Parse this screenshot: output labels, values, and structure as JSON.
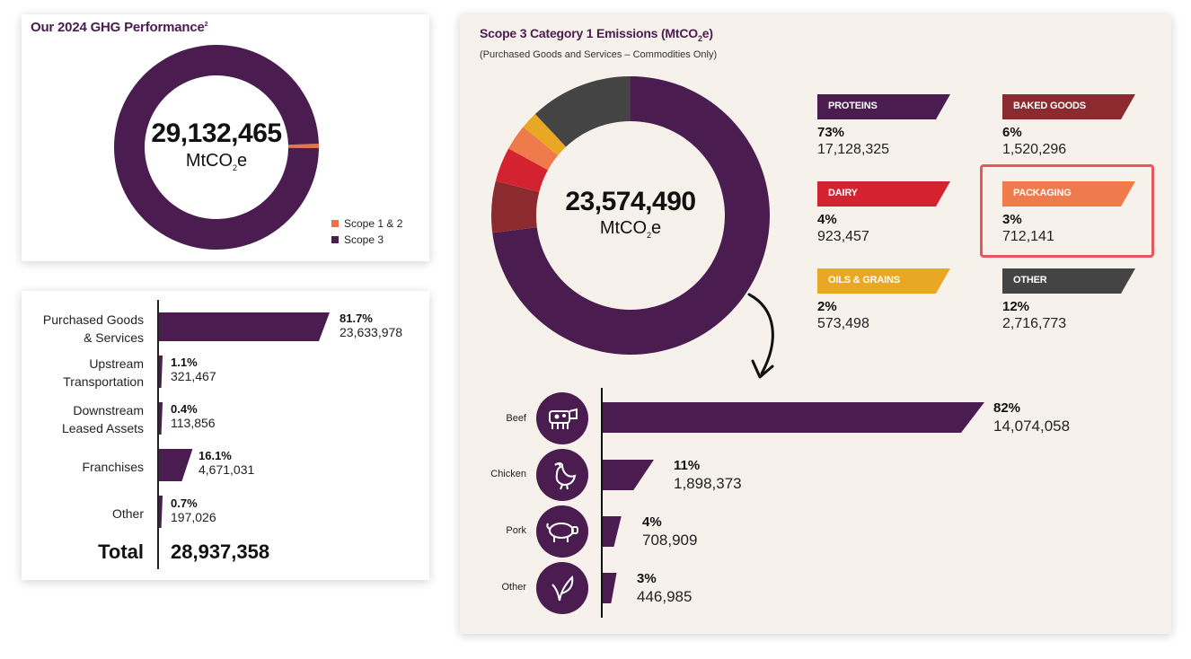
{
  "ghg_performance": {
    "title": "Our 2024 GHG Performance",
    "title_sup": "2",
    "total_value": "29,132,465",
    "unit_prefix": "MtCO",
    "unit_sub": "2",
    "unit_suffix": "e",
    "legend": [
      {
        "label": "Scope 1 & 2",
        "color": "#e8724a"
      },
      {
        "label": "Scope 3",
        "color": "#4a1c4f"
      }
    ]
  },
  "scope3_breakdown": {
    "rows": [
      {
        "label_line1": "Purchased Goods",
        "label_line2": "& Services",
        "pct": "81.7%",
        "value": "23,633,978"
      },
      {
        "label_line1": "Upstream",
        "label_line2": "Transportation",
        "pct": "1.1%",
        "value": "321,467"
      },
      {
        "label_line1": "Downstream",
        "label_line2": "Leased Assets",
        "pct": "0.4%",
        "value": "113,856"
      },
      {
        "label_line1": "Franchises",
        "label_line2": "",
        "pct": "16.1%",
        "value": "4,671,031"
      },
      {
        "label_line1": "Other",
        "label_line2": "",
        "pct": "0.7%",
        "value": "197,026"
      }
    ],
    "total_label": "Total",
    "total_value": "28,937,358"
  },
  "category1": {
    "title_prefix": "Scope 3 Category 1 Emissions (MtCO",
    "title_sub": "2",
    "title_suffix": "e)",
    "subtitle": "(Purchased Goods and Services – Commodities Only)",
    "total_value": "23,574,490",
    "unit_prefix": "MtCO",
    "unit_sub": "2",
    "unit_suffix": "e",
    "categories": [
      {
        "name": "PROTEINS",
        "pct": "73%",
        "value": "17,128,325",
        "color": "#4a1c4f"
      },
      {
        "name": "BAKED GOODS",
        "pct": "6%",
        "value": "1,520,296",
        "color": "#8b2a2f"
      },
      {
        "name": "DAIRY",
        "pct": "4%",
        "value": "923,457",
        "color": "#d42330"
      },
      {
        "name": "PACKAGING",
        "pct": "3%",
        "value": "712,141",
        "color": "#ef7b4d"
      },
      {
        "name": "OILS & GRAINS",
        "pct": "2%",
        "value": "573,498",
        "color": "#e9a823"
      },
      {
        "name": "OTHER",
        "pct": "12%",
        "value": "2,716,773",
        "color": "#444444"
      }
    ],
    "proteins": [
      {
        "label": "Beef",
        "icon": "cow-icon",
        "pct": "82%",
        "value": "14,074,058"
      },
      {
        "label": "Chicken",
        "icon": "chicken-icon",
        "pct": "11%",
        "value": "1,898,373"
      },
      {
        "label": "Pork",
        "icon": "pig-icon",
        "pct": "4%",
        "value": "708,909"
      },
      {
        "label": "Other",
        "icon": "plant-icon",
        "pct": "3%",
        "value": "446,985"
      }
    ]
  },
  "chart_data": [
    {
      "type": "pie",
      "title": "Our 2024 GHG Performance",
      "categories": [
        "Scope 1 & 2",
        "Scope 3"
      ],
      "values": [
        0.7,
        99.3
      ],
      "colors": [
        "#e8724a",
        "#4a1c4f"
      ],
      "legend": "bottom-right"
    },
    {
      "type": "bar",
      "categories": [
        "Purchased Goods & Services",
        "Upstream Transportation",
        "Downstream Leased Assets",
        "Franchises",
        "Other"
      ],
      "values": [
        81.7,
        1.1,
        0.4,
        16.1,
        0.7
      ],
      "absolute_values": [
        23633978,
        321467,
        113856,
        4671031,
        197026
      ],
      "total": 28937358
    },
    {
      "type": "pie",
      "title": "Scope 3 Category 1 Emissions (MtCO2e)",
      "subtitle": "(Purchased Goods and Services – Commodities Only)",
      "categories": [
        "PROTEINS",
        "BAKED GOODS",
        "DAIRY",
        "PACKAGING",
        "OILS & GRAINS",
        "OTHER"
      ],
      "values": [
        73,
        6,
        4,
        3,
        2,
        12
      ],
      "absolute_values": [
        17128325,
        1520296,
        923457,
        712141,
        573498,
        2716773
      ],
      "colors": [
        "#4a1c4f",
        "#8b2a2f",
        "#d42330",
        "#ef7b4d",
        "#e9a823",
        "#444444"
      ]
    },
    {
      "type": "bar",
      "categories": [
        "Beef",
        "Chicken",
        "Pork",
        "Other"
      ],
      "values": [
        82,
        11,
        4,
        3
      ],
      "absolute_values": [
        14074058,
        1898373,
        708909,
        446985
      ]
    }
  ]
}
